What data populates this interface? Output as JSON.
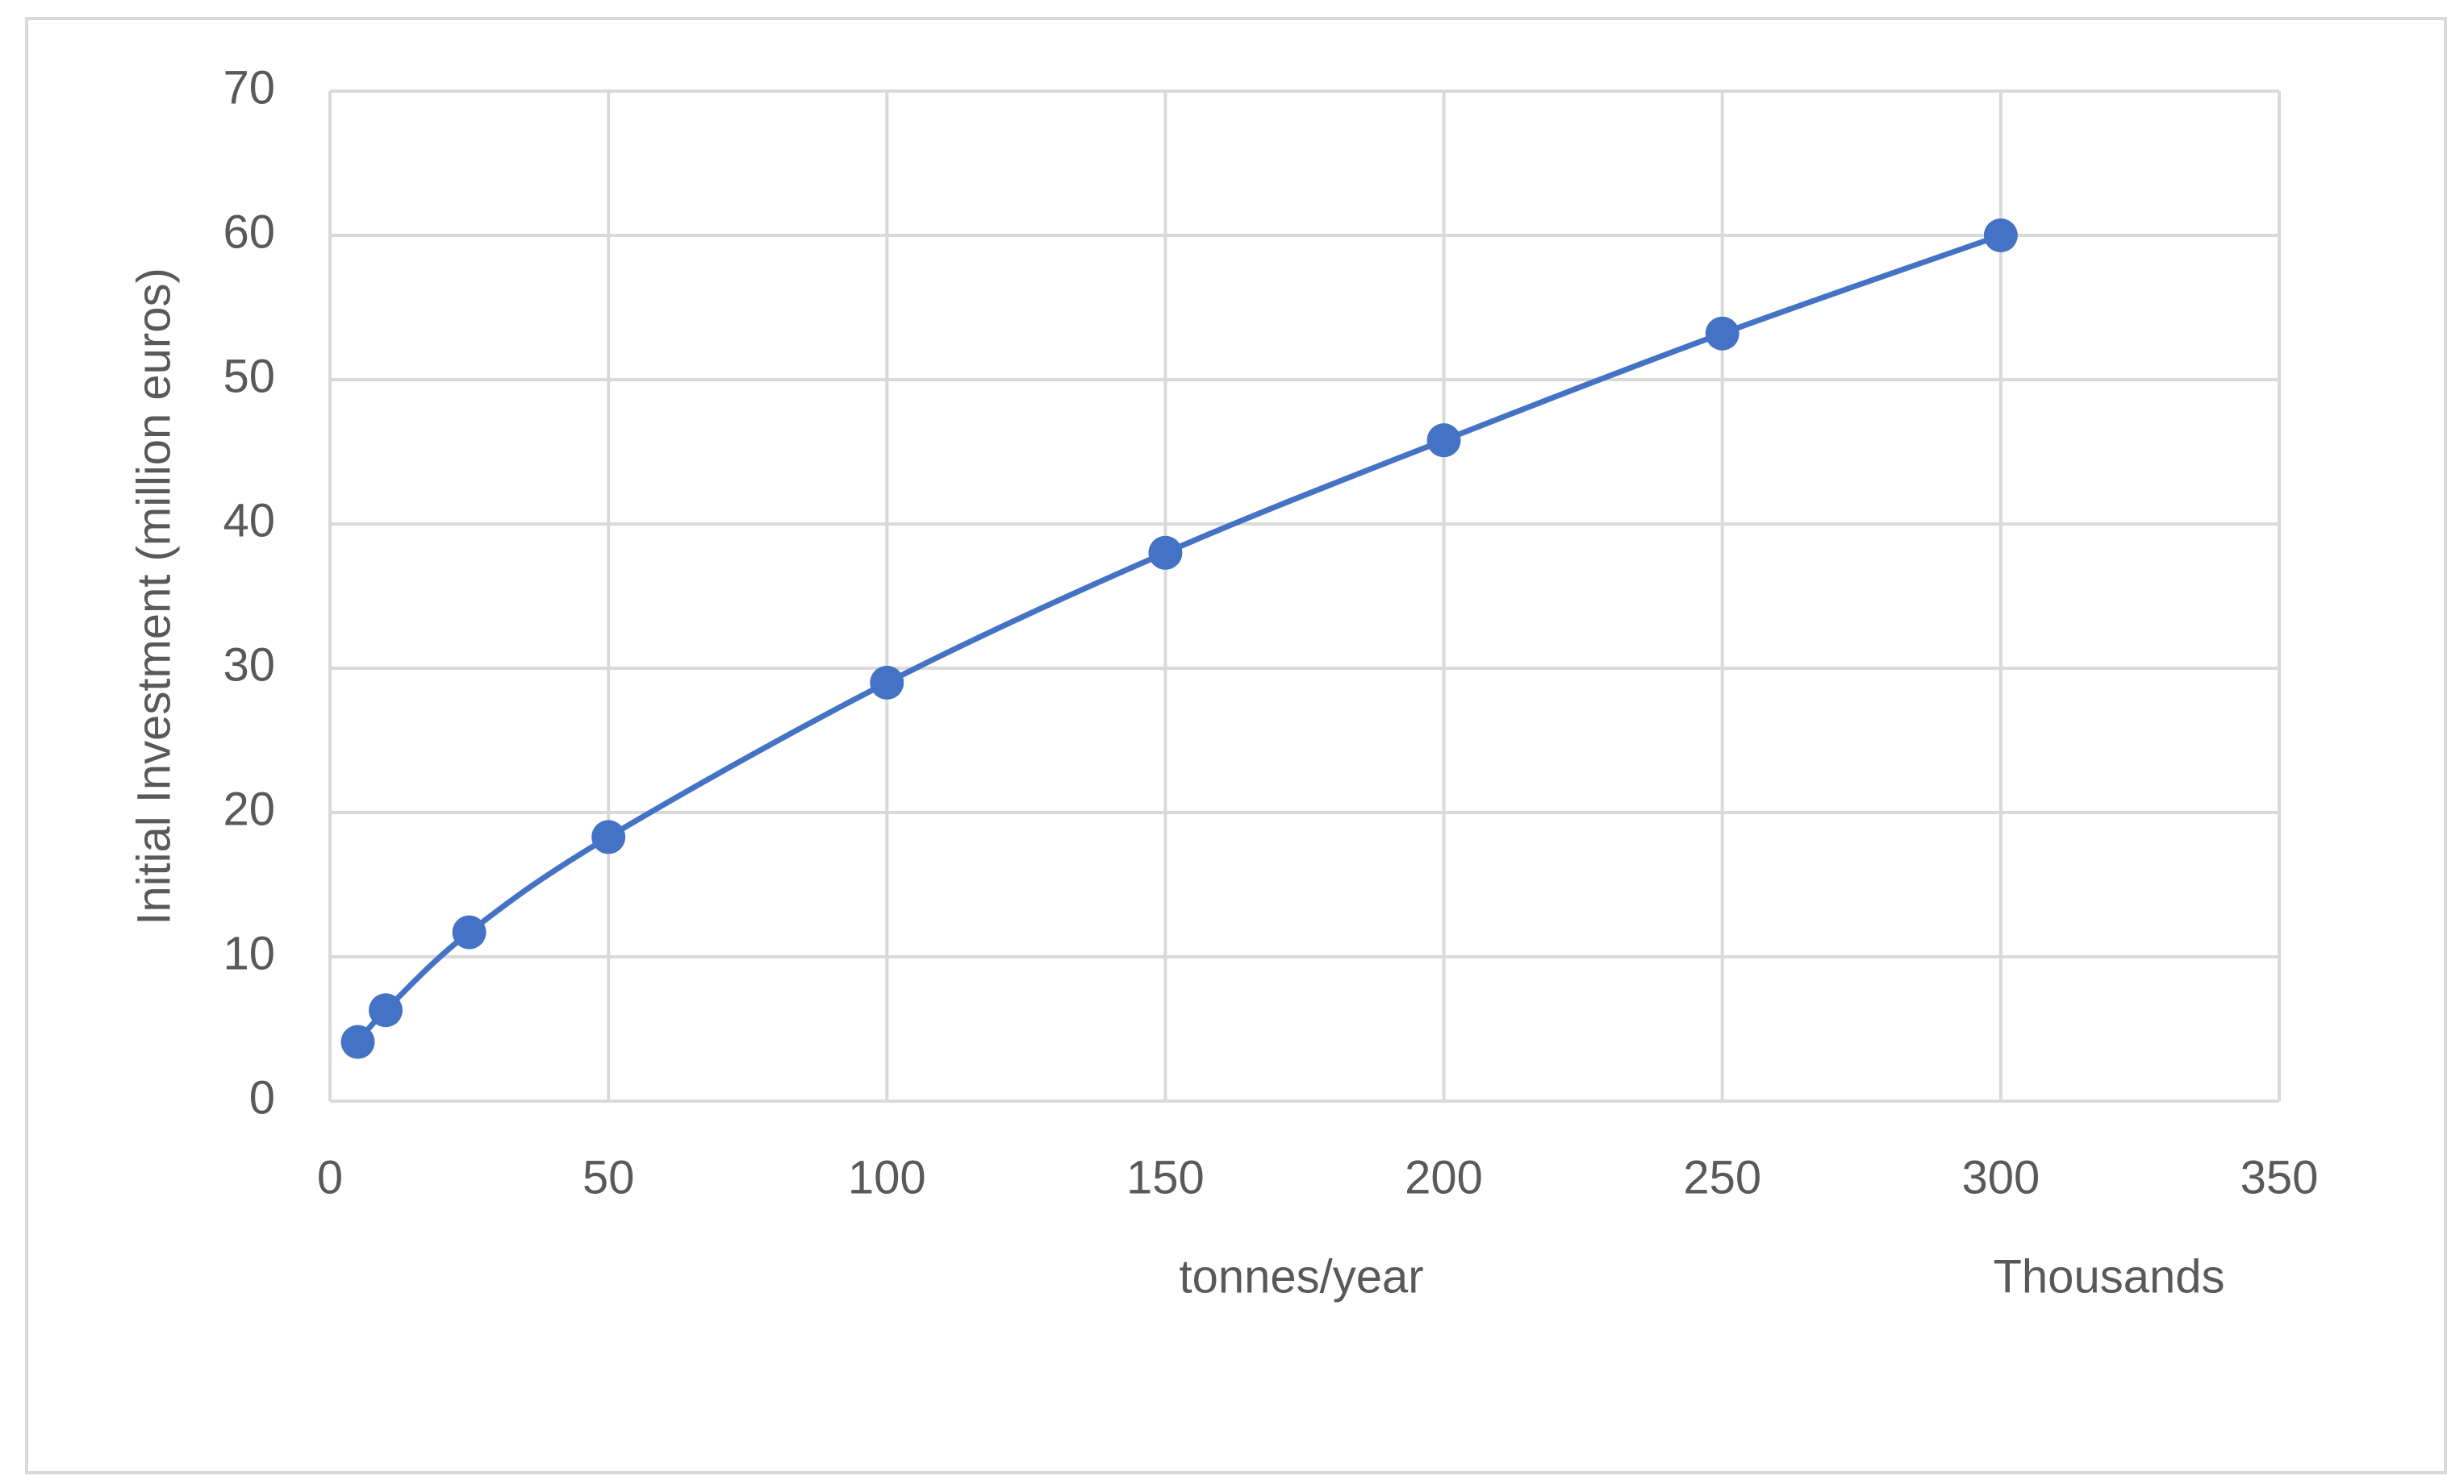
{
  "chart_data": {
    "type": "scatter",
    "smooth": true,
    "x_label": "tonnes/year",
    "x_unit_label": "Thousands",
    "y_label": "Initial Investment  (million euros)",
    "x": [
      5,
      10,
      25,
      50,
      100,
      150,
      200,
      250,
      300
    ],
    "values": [
      4.1,
      6.3,
      11.7,
      18.3,
      29.0,
      38.0,
      45.8,
      53.2,
      60.0
    ],
    "color": "#4472c4",
    "xlim": [
      0,
      350
    ],
    "xticks": [
      0,
      50,
      100,
      150,
      200,
      250,
      300,
      350
    ],
    "ylim": [
      0,
      70
    ],
    "yticks": [
      0,
      10,
      20,
      30,
      40,
      50,
      60,
      70
    ],
    "grid": true
  }
}
